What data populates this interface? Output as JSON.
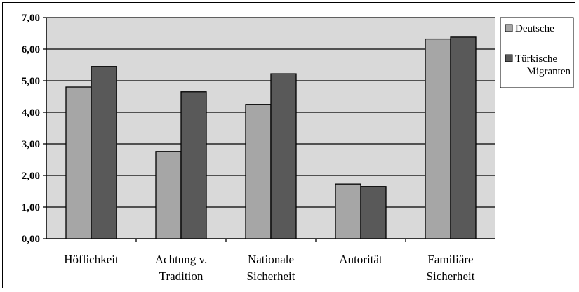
{
  "chart_data": {
    "type": "bar",
    "categories": [
      [
        "Höflichkeit"
      ],
      [
        "Achtung v.",
        "Tradition"
      ],
      [
        "Nationale",
        "Sicherheit"
      ],
      [
        "Autorität"
      ],
      [
        "Familiäre",
        "Sicherheit"
      ]
    ],
    "series": [
      {
        "name": "Deutsche",
        "values": [
          4.8,
          2.76,
          4.25,
          1.73,
          6.32
        ],
        "color": "#a6a6a6"
      },
      {
        "name": "Türkische Migranten",
        "name_lines": [
          "Türkische",
          "Migranten"
        ],
        "values": [
          5.45,
          4.65,
          5.22,
          1.65,
          6.38
        ],
        "color": "#595959"
      }
    ],
    "ylim": [
      0,
      7
    ],
    "yticks": [
      "0,00",
      "1,00",
      "2,00",
      "3,00",
      "4,00",
      "5,00",
      "6,00",
      "7,00"
    ],
    "plot_background": "#d9d9d9",
    "grid": true,
    "legend_position": "right"
  }
}
